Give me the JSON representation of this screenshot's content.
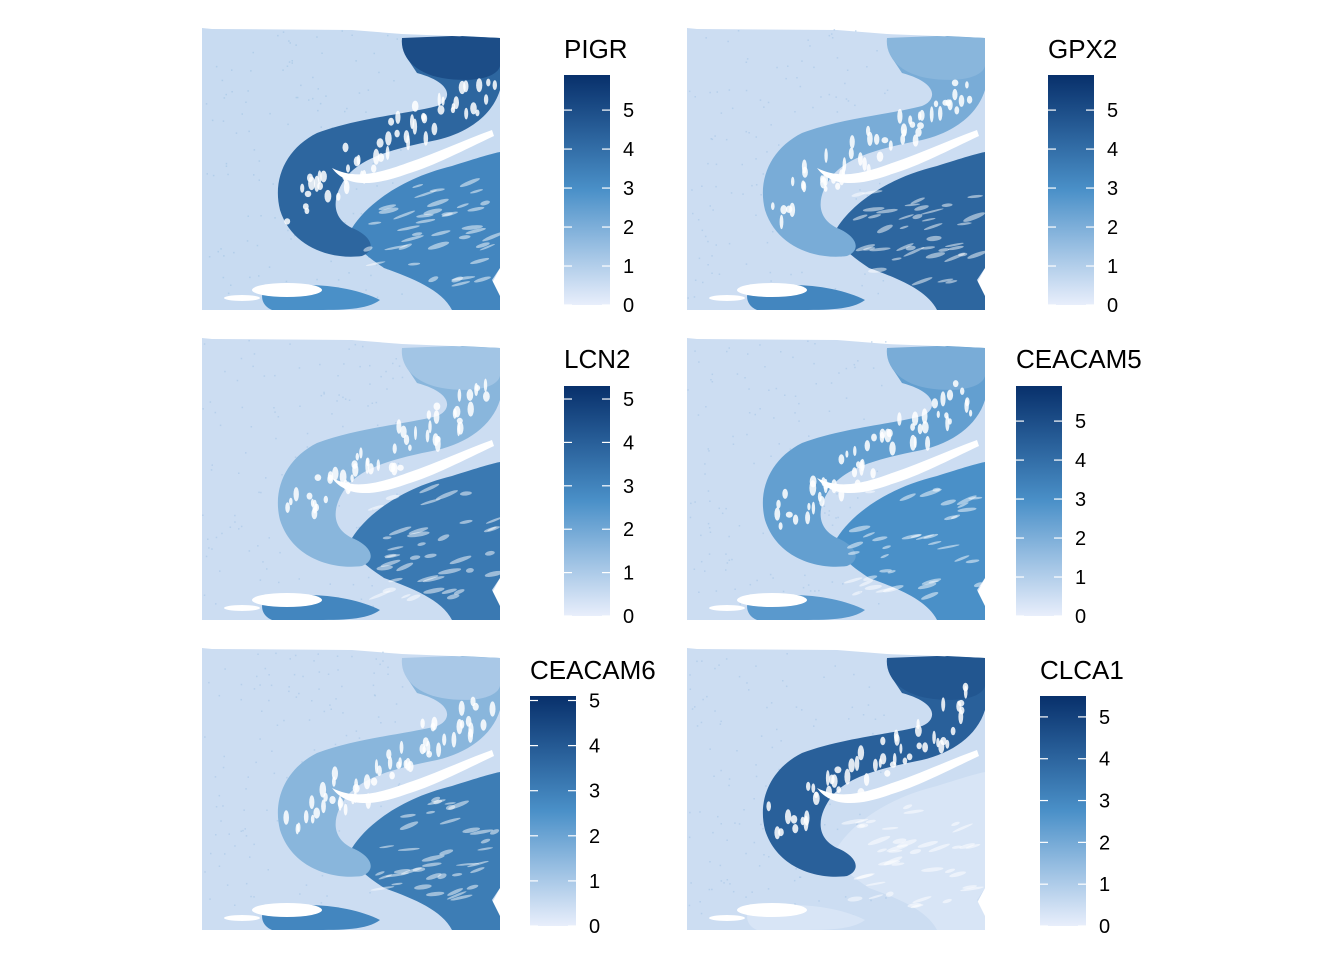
{
  "chart_data": {
    "type": "heatmap",
    "description_scale": "spatial gene expression, 0 (light) to max (dark blue)",
    "colors": {
      "low": "#e8eefb",
      "mid": "#4a90c8",
      "high": "#08306b",
      "tissue_bg": "#e6ecfa"
    },
    "panels": [
      {
        "title": "PIGR",
        "ticks": [
          "0",
          "1",
          "2",
          "3",
          "4",
          "5"
        ],
        "min": 0,
        "max": 5.9,
        "levels": {
          "mucosa_top": 0.85,
          "mucosa_band": 0.72,
          "tumor": 0.55,
          "lower_strip": 0.5,
          "background": 0.04
        }
      },
      {
        "title": "GPX2",
        "ticks": [
          "0",
          "1",
          "2",
          "3",
          "4",
          "5"
        ],
        "min": 0,
        "max": 5.9,
        "levels": {
          "mucosa_top": 0.3,
          "mucosa_band": 0.35,
          "tumor": 0.72,
          "lower_strip": 0.55,
          "background": 0.03
        }
      },
      {
        "title": "LCN2",
        "ticks": [
          "0",
          "1",
          "2",
          "3",
          "4",
          "5"
        ],
        "min": 0,
        "max": 5.3,
        "levels": {
          "mucosa_top": 0.22,
          "mucosa_band": 0.3,
          "tumor": 0.62,
          "lower_strip": 0.55,
          "background": 0.03
        }
      },
      {
        "title": "CEACAM5",
        "ticks": [
          "0",
          "1",
          "2",
          "3",
          "4",
          "5"
        ],
        "min": 0,
        "max": 5.9,
        "levels": {
          "mucosa_top": 0.35,
          "mucosa_band": 0.42,
          "tumor": 0.5,
          "lower_strip": 0.45,
          "background": 0.03
        }
      },
      {
        "title": "CEACAM6",
        "ticks": [
          "0",
          "1",
          "2",
          "3",
          "4",
          "5"
        ],
        "min": 0,
        "max": 5.1,
        "levels": {
          "mucosa_top": 0.2,
          "mucosa_band": 0.3,
          "tumor": 0.6,
          "lower_strip": 0.55,
          "background": 0.03
        }
      },
      {
        "title": "CLCA1",
        "ticks": [
          "0",
          "1",
          "2",
          "3",
          "4",
          "5"
        ],
        "min": 0,
        "max": 5.5,
        "levels": {
          "mucosa_top": 0.8,
          "mucosa_band": 0.75,
          "tumor": 0.05,
          "lower_strip": 0.05,
          "background": 0.03
        }
      }
    ]
  }
}
